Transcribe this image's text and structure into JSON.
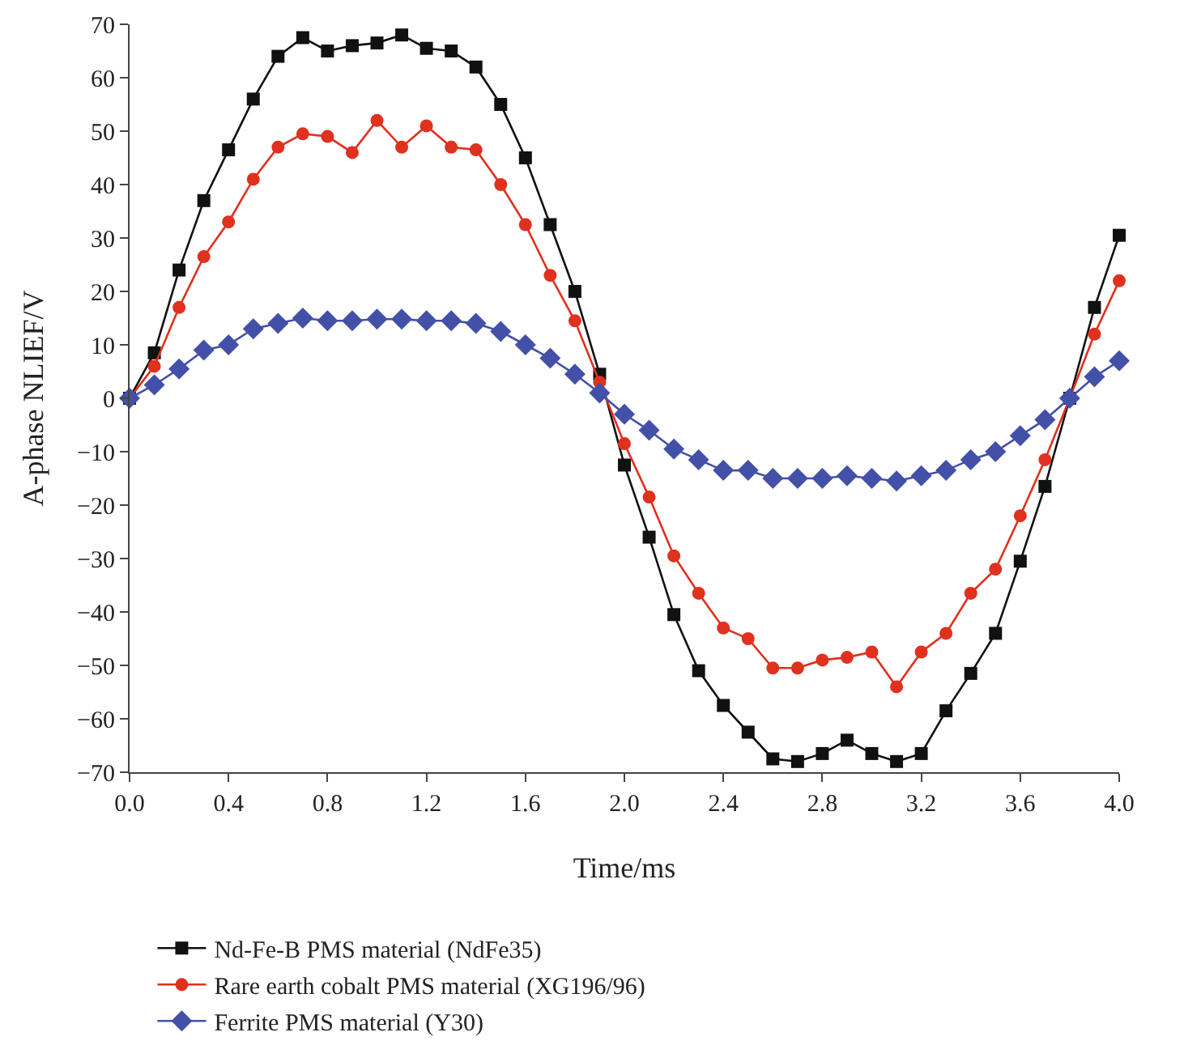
{
  "chart_data": {
    "type": "line",
    "xlabel": "Time/ms",
    "ylabel": "A-phase NLIEF/V",
    "x": [
      0,
      0.1,
      0.2,
      0.3,
      0.4,
      0.5,
      0.6,
      0.7,
      0.8,
      0.9,
      1.0,
      1.1,
      1.2,
      1.3,
      1.4,
      1.5,
      1.6,
      1.7,
      1.8,
      1.9,
      2.0,
      2.1,
      2.2,
      2.3,
      2.4,
      2.5,
      2.6,
      2.7,
      2.8,
      2.9,
      3.0,
      3.1,
      3.2,
      3.3,
      3.4,
      3.5,
      3.6,
      3.7,
      3.8,
      3.9,
      4.0
    ],
    "series": [
      {
        "name": "Nd-Fe-B PMS material (NdFe35)",
        "color": "#111111",
        "marker": "square",
        "values": [
          0,
          8.5,
          24,
          37,
          46.5,
          56,
          64,
          67.5,
          65,
          66,
          66.5,
          68,
          65.5,
          65,
          62,
          55,
          45,
          32.5,
          20,
          4.5,
          -12.5,
          -26,
          -40.5,
          -51,
          -57.5,
          -62.5,
          -67.5,
          -68,
          -66.5,
          -64,
          -66.5,
          -68,
          -66.5,
          -58.5,
          -51.5,
          -44,
          -30.5,
          -16.5,
          0,
          17,
          30.5
        ]
      },
      {
        "name": "Rare earth cobalt PMS material (XG196/96)",
        "color": "#e0301e",
        "marker": "circle",
        "values": [
          0,
          6,
          17,
          26.5,
          33,
          41,
          47,
          49.5,
          49,
          46,
          52,
          47,
          51,
          47,
          46.5,
          40,
          32.5,
          23,
          14.5,
          3,
          -8.5,
          -18.5,
          -29.5,
          -36.5,
          -43,
          -45,
          -50.5,
          -50.5,
          -49,
          -48.5,
          -47.5,
          -54,
          -47.5,
          -44,
          -36.5,
          -32,
          -22,
          -11.5,
          0,
          12,
          22
        ]
      },
      {
        "name": "Ferrite PMS material (Y30)",
        "color": "#4350a8",
        "marker": "diamond",
        "values": [
          0,
          2.5,
          5.5,
          9,
          10,
          13,
          14,
          15,
          14.5,
          14.5,
          14.8,
          14.8,
          14.5,
          14.5,
          14,
          12.5,
          10,
          7.5,
          4.5,
          1,
          -3,
          -6,
          -9.5,
          -11.5,
          -13.5,
          -13.5,
          -15,
          -15,
          -15,
          -14.5,
          -15,
          -15.5,
          -14.5,
          -13.5,
          -11.5,
          -10,
          -7,
          -4,
          0,
          4,
          7
        ]
      }
    ],
    "xlim": [
      0,
      4.0
    ],
    "xticks": [
      {
        "value": 0,
        "label": "0.0"
      },
      0.4,
      0.8,
      1.2,
      1.6,
      {
        "value": 2.0,
        "label": "2.0"
      },
      2.4,
      2.8,
      3.2,
      3.6,
      {
        "value": 4.0,
        "label": "4.0"
      }
    ],
    "ylim": [
      -70,
      70
    ],
    "yticks": [
      -70,
      -60,
      -50,
      -40,
      -30,
      -20,
      -10,
      0,
      10,
      20,
      30,
      40,
      50,
      60,
      70
    ],
    "legend": "bottom",
    "line_style": "solid"
  }
}
